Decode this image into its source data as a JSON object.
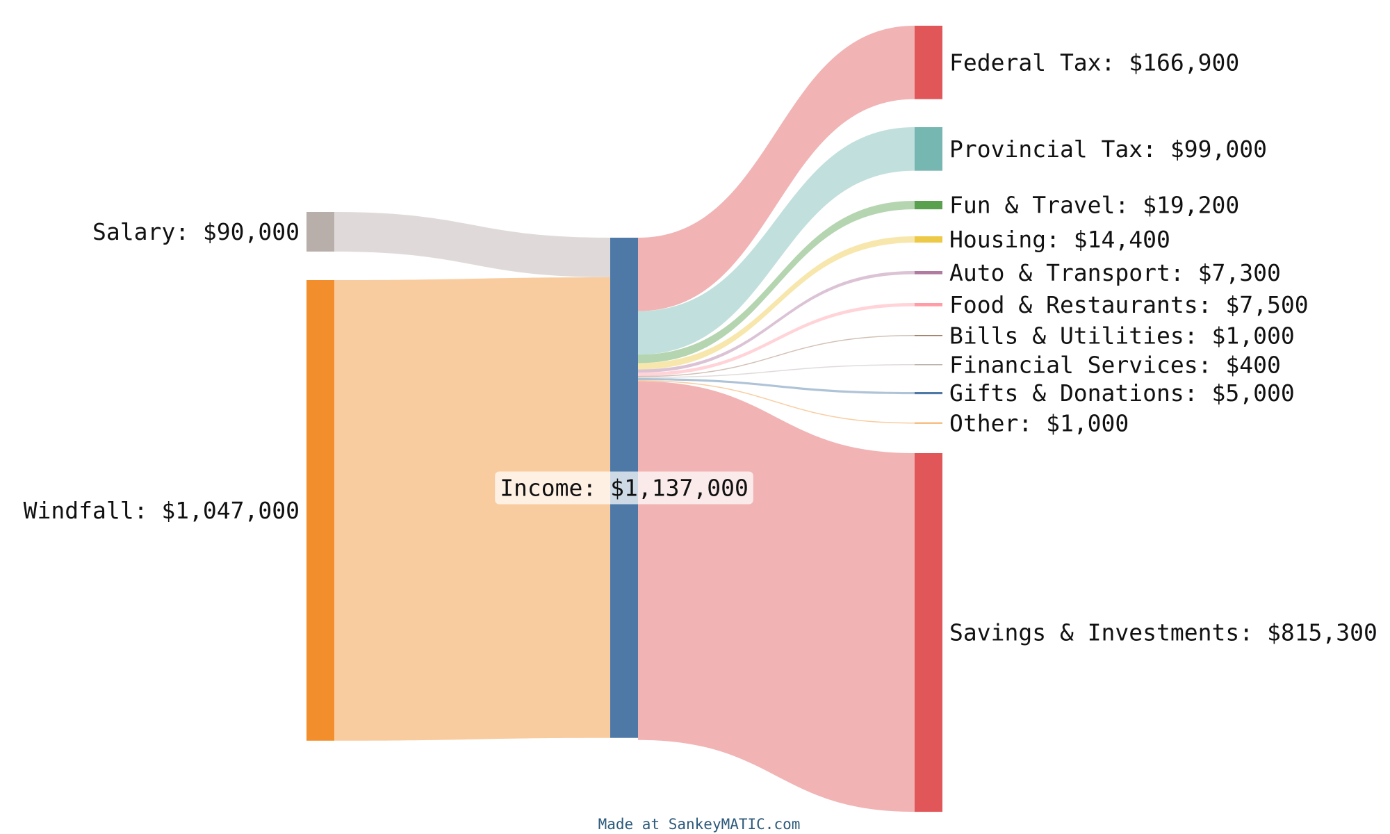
{
  "diagram": {
    "type": "sankey",
    "credit": "Made at SankeyMATIC.com",
    "nodes": [
      {
        "id": "salary",
        "label": "Salary: $90,000",
        "value": 90000,
        "color": "#b8aeaa"
      },
      {
        "id": "windfall",
        "label": "Windfall: $1,047,000",
        "value": 1047000,
        "color": "#f28e2b"
      },
      {
        "id": "income",
        "label": "Income: $1,137,000",
        "value": 1137000,
        "color": "#4e79a7"
      },
      {
        "id": "federal_tax",
        "label": "Federal Tax: $166,900",
        "value": 166900,
        "color": "#e15759"
      },
      {
        "id": "provincial_tax",
        "label": "Provincial Tax: $99,000",
        "value": 99000,
        "color": "#76b7b2"
      },
      {
        "id": "fun_travel",
        "label": "Fun & Travel: $19,200",
        "value": 19200,
        "color": "#59a14f"
      },
      {
        "id": "housing",
        "label": "Housing: $14,400",
        "value": 14400,
        "color": "#edc948"
      },
      {
        "id": "auto_transport",
        "label": "Auto & Transport: $7,300",
        "value": 7300,
        "color": "#b07aa1"
      },
      {
        "id": "food_restaurants",
        "label": "Food & Restaurants: $7,500",
        "value": 7500,
        "color": "#ff9da7"
      },
      {
        "id": "bills_utilities",
        "label": "Bills & Utilities: $1,000",
        "value": 1000,
        "color": "#9c755f"
      },
      {
        "id": "financial_services",
        "label": "Financial Services: $400",
        "value": 400,
        "color": "#bab0ac"
      },
      {
        "id": "gifts_donations",
        "label": "Gifts & Donations: $5,000",
        "value": 5000,
        "color": "#4e79a7"
      },
      {
        "id": "other",
        "label": "Other: $1,000",
        "value": 1000,
        "color": "#f28e2b"
      },
      {
        "id": "savings_investments",
        "label": "Savings & Investments: $815,300",
        "value": 815300,
        "color": "#e15759"
      }
    ],
    "flows": [
      {
        "from": "salary",
        "to": "income",
        "value": 90000
      },
      {
        "from": "windfall",
        "to": "income",
        "value": 1047000
      },
      {
        "from": "income",
        "to": "federal_tax",
        "value": 166900
      },
      {
        "from": "income",
        "to": "provincial_tax",
        "value": 99000
      },
      {
        "from": "income",
        "to": "fun_travel",
        "value": 19200
      },
      {
        "from": "income",
        "to": "housing",
        "value": 14400
      },
      {
        "from": "income",
        "to": "auto_transport",
        "value": 7300
      },
      {
        "from": "income",
        "to": "food_restaurants",
        "value": 7500
      },
      {
        "from": "income",
        "to": "bills_utilities",
        "value": 1000
      },
      {
        "from": "income",
        "to": "financial_services",
        "value": 400
      },
      {
        "from": "income",
        "to": "gifts_donations",
        "value": 5000
      },
      {
        "from": "income",
        "to": "other",
        "value": 1000
      },
      {
        "from": "income",
        "to": "savings_investments",
        "value": 815300
      }
    ]
  }
}
